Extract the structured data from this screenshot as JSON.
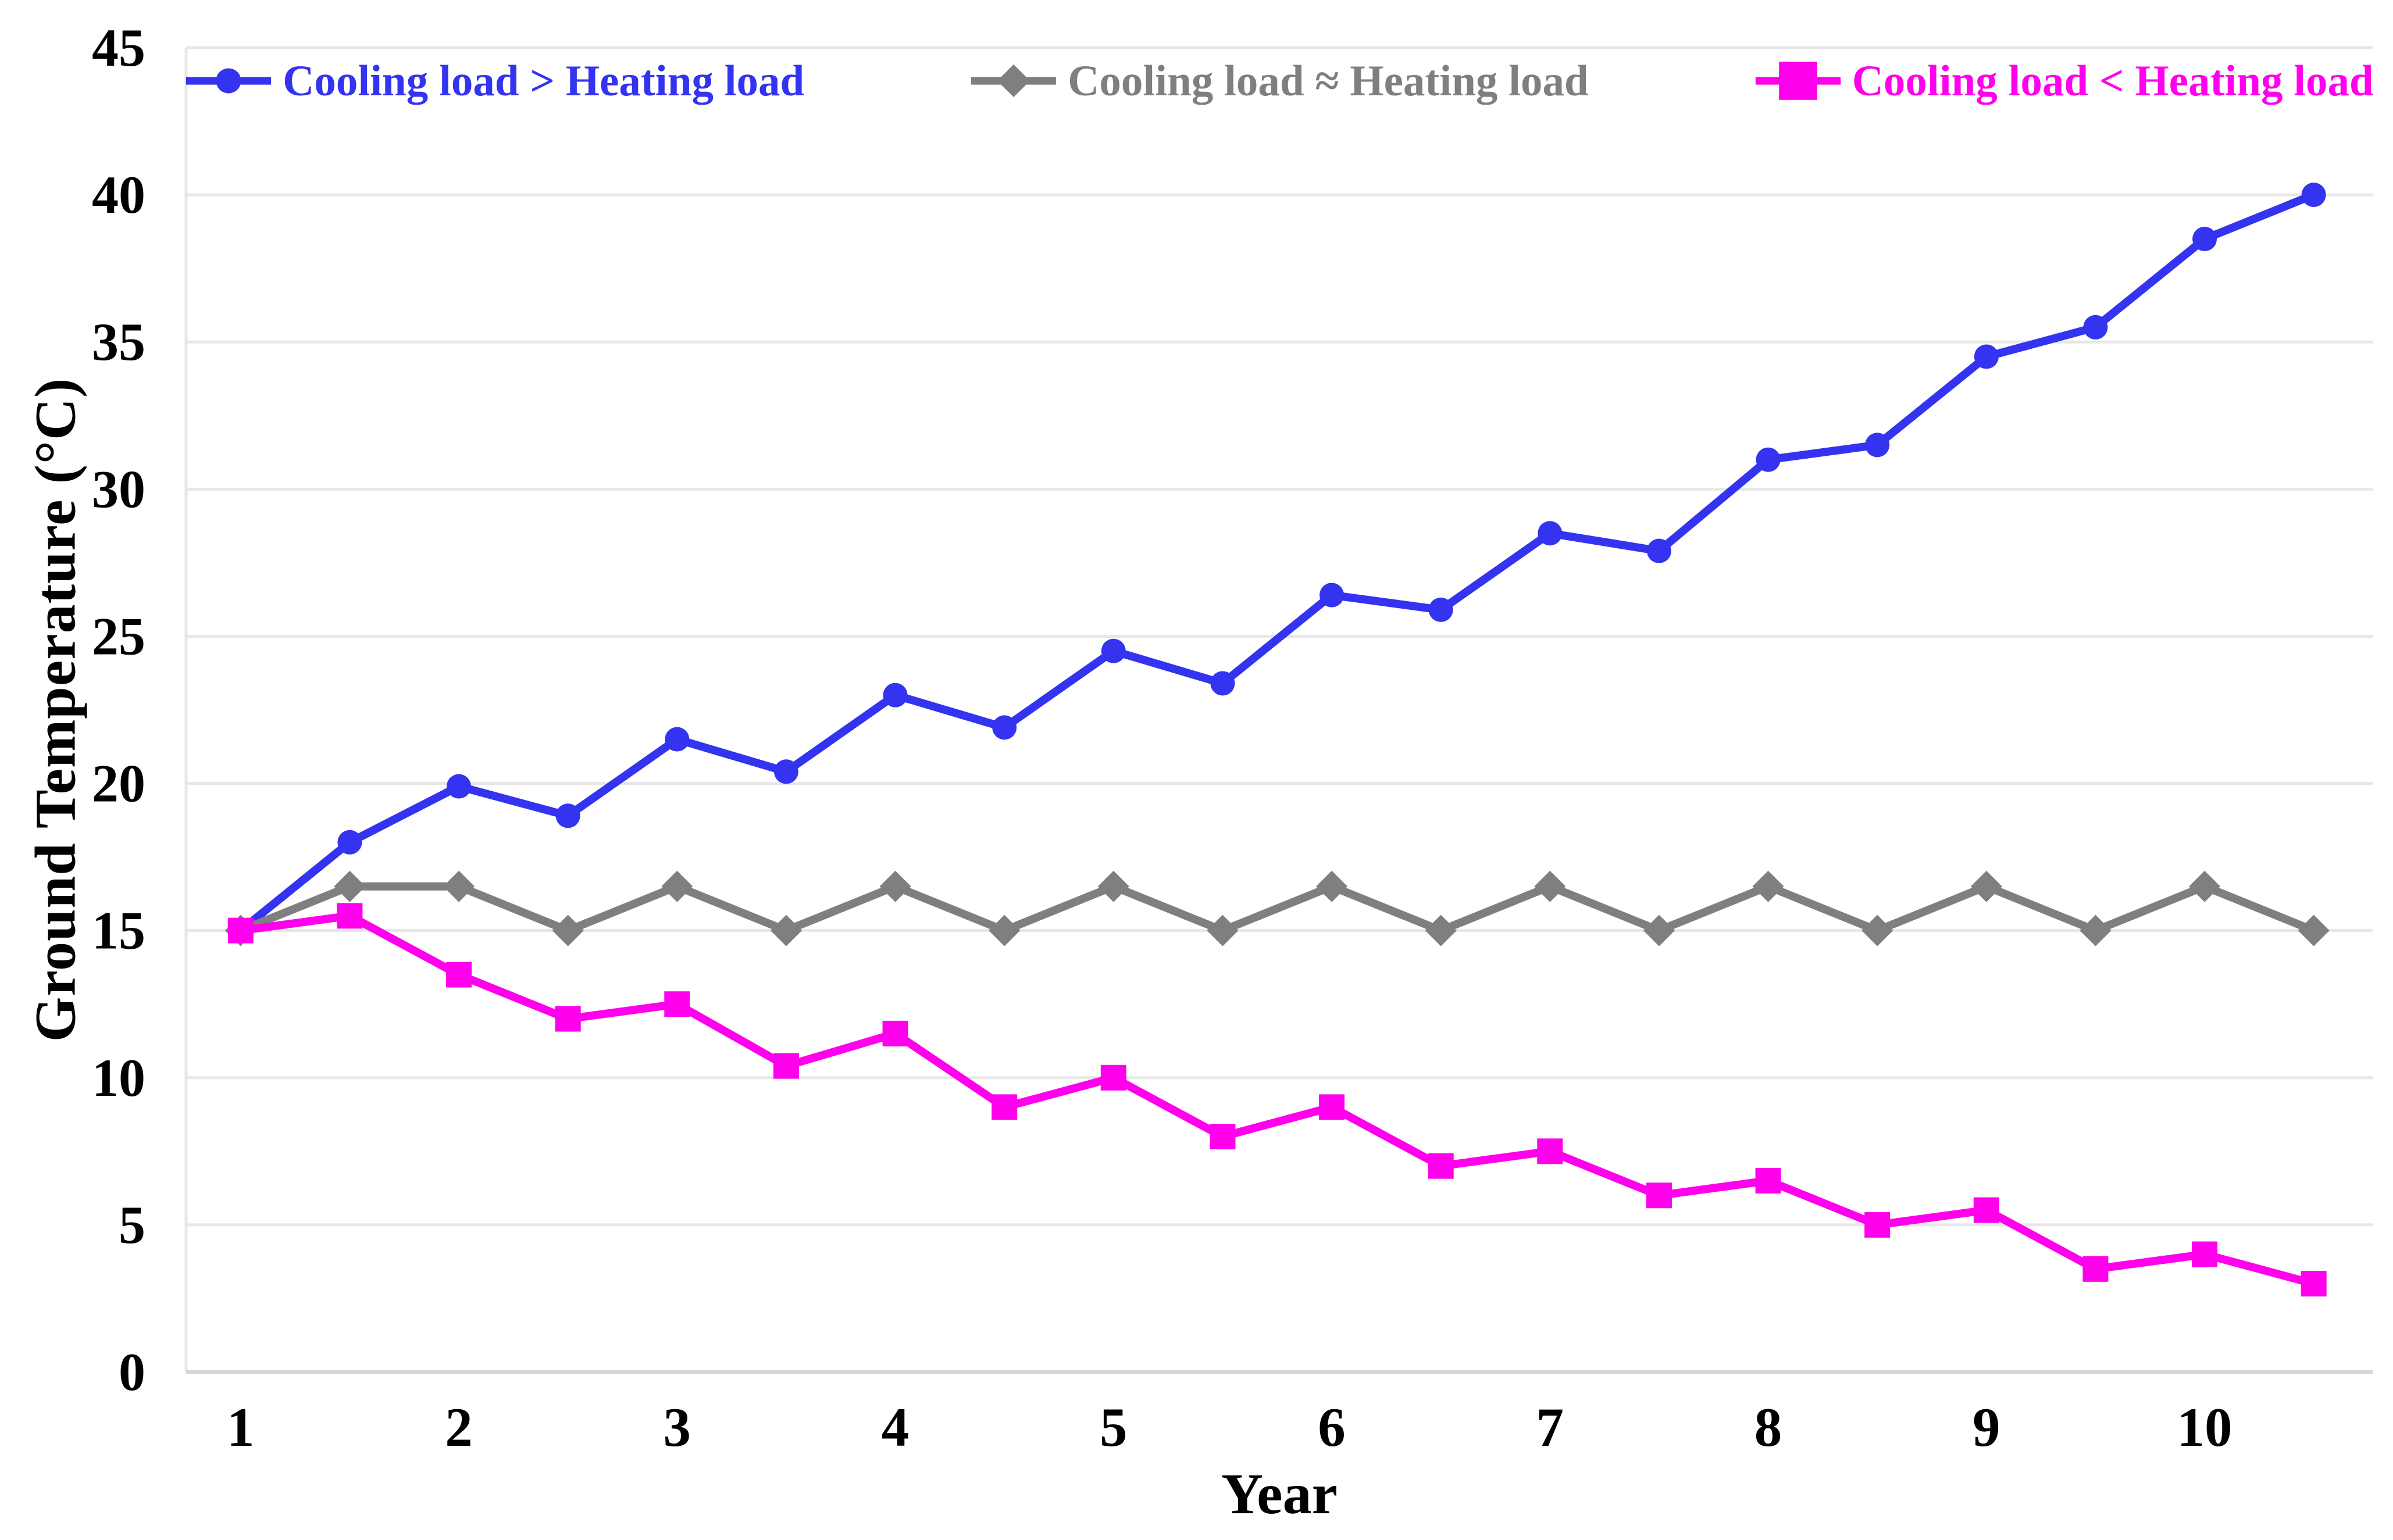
{
  "chart_data": {
    "type": "line",
    "title": "",
    "xlabel": "Year",
    "ylabel": "Ground Temperature (°C)",
    "x": [
      1,
      1.5,
      2,
      2.5,
      3,
      3.5,
      4,
      4.5,
      5,
      5.5,
      6,
      6.5,
      7,
      7.5,
      8,
      8.5,
      9,
      9.5,
      10,
      10.5
    ],
    "series": [
      {
        "name": "Cooling load > Heating load",
        "color": "#3333F0",
        "marker": "circle",
        "values": [
          15,
          18,
          19.9,
          18.9,
          21.5,
          20.4,
          23,
          21.9,
          24.5,
          23.4,
          26.4,
          25.9,
          28.5,
          27.9,
          31,
          31.5,
          34.5,
          35.5,
          38.5,
          40
        ]
      },
      {
        "name": "Cooling load ≈ Heating load",
        "color": "#7F7F7F",
        "marker": "diamond",
        "values": [
          15,
          16.5,
          16.5,
          15,
          16.5,
          15,
          16.5,
          15,
          16.5,
          15,
          16.5,
          15,
          16.5,
          15,
          16.5,
          15,
          16.5,
          15,
          16.5,
          15
        ]
      },
      {
        "name": "Cooling load < Heating load",
        "color": "#FF00EC",
        "marker": "square",
        "values": [
          15,
          15.5,
          13.5,
          12,
          12.5,
          10.4,
          11.5,
          9,
          10,
          8,
          9,
          7,
          7.5,
          6,
          6.5,
          5,
          5.5,
          3.5,
          4,
          3
        ]
      }
    ],
    "xticks": [
      1,
      2,
      3,
      4,
      5,
      6,
      7,
      8,
      9,
      10
    ],
    "yticks": [
      0,
      5,
      10,
      15,
      20,
      25,
      30,
      35,
      40,
      45
    ],
    "xlim": [
      0.75,
      10.77
    ],
    "ylim": [
      0,
      45
    ],
    "grid": "horizontal-only",
    "legend_position": "top-center"
  },
  "styles": {
    "grid_color": "#E7E7E7",
    "axis_line_color": "#D6D6D6",
    "tick_text_color": "#000000"
  }
}
